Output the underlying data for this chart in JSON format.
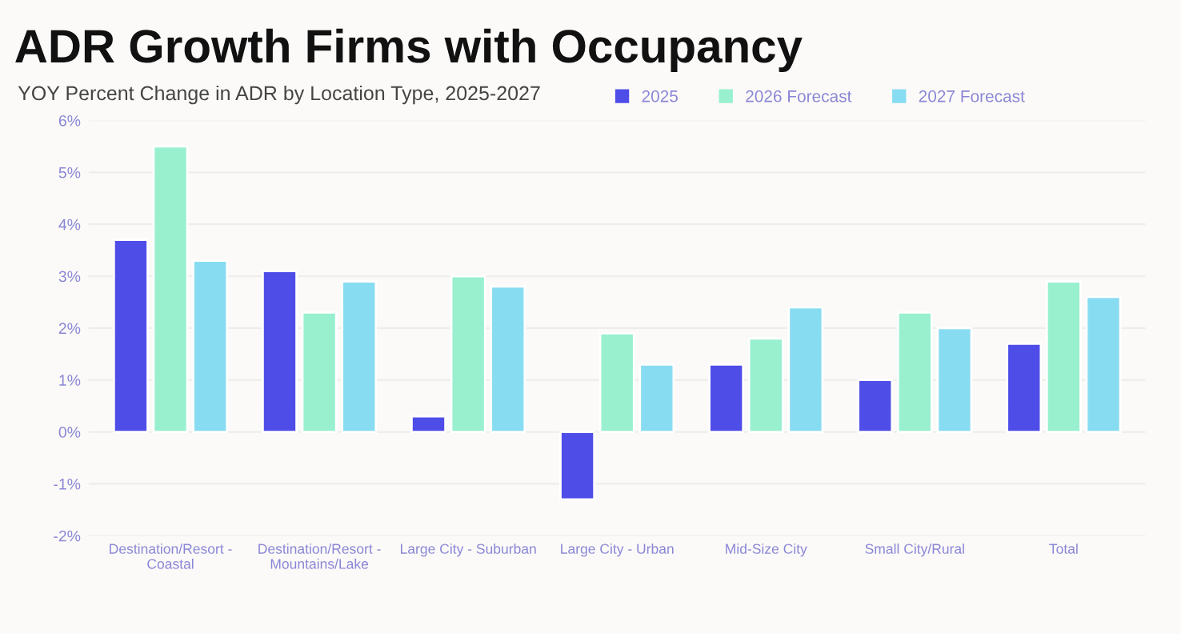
{
  "chart_data": {
    "type": "bar",
    "title": "ADR Growth Firms with Occupancy",
    "subtitle": "YOY Percent Change in ADR by Location Type, 2025-2027",
    "categories": [
      "Destination/Resort -\nCoastal",
      "Destination/Resort -\nMountains/Lake",
      "Large City - Suburban",
      "Large City - Urban",
      "Mid-Size City",
      "Small City/Rural",
      "Total"
    ],
    "series": [
      {
        "name": "2025",
        "color": "#4f4de8",
        "values": [
          3.7,
          3.1,
          0.3,
          -1.3,
          1.3,
          1.0,
          1.7
        ]
      },
      {
        "name": "2026 Forecast",
        "color": "#98f0cf",
        "values": [
          5.5,
          2.3,
          3.0,
          1.9,
          1.8,
          2.3,
          2.9
        ]
      },
      {
        "name": "2027 Forecast",
        "color": "#88dcf2",
        "values": [
          3.3,
          2.9,
          2.8,
          1.3,
          2.4,
          2.0,
          2.6
        ]
      }
    ],
    "ylim": [
      -2,
      6
    ],
    "yticks": [
      {
        "value": -2,
        "label": "-2%"
      },
      {
        "value": -1,
        "label": "-1%"
      },
      {
        "value": 0,
        "label": "0%"
      },
      {
        "value": 1,
        "label": "1%"
      },
      {
        "value": 2,
        "label": "2%"
      },
      {
        "value": 3,
        "label": "3%"
      },
      {
        "value": 4,
        "label": "4%"
      },
      {
        "value": 5,
        "label": "5%"
      },
      {
        "value": 6,
        "label": "6%"
      }
    ],
    "grid": "y",
    "legend": "top right"
  }
}
